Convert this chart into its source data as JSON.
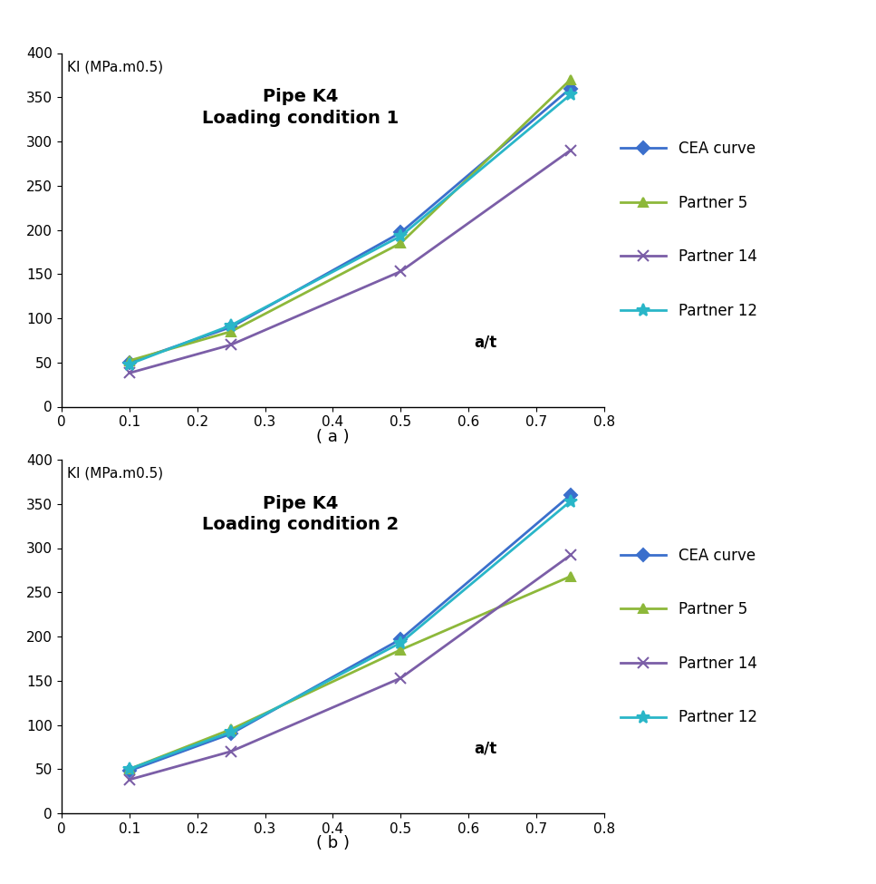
{
  "chart_a": {
    "title_line1": "Pipe K4",
    "title_line2": "Loading condition 1",
    "ylabel": "KI (MPa.m0.5)",
    "xlabel": "a/t",
    "caption": "( a )",
    "series": {
      "CEA curve": {
        "x": [
          0.1,
          0.25,
          0.5,
          0.75
        ],
        "y": [
          50,
          90,
          197,
          360
        ],
        "color": "#3B6FCC",
        "marker": "D",
        "markersize": 7,
        "linewidth": 2.0
      },
      "Partner 5": {
        "x": [
          0.1,
          0.25,
          0.5,
          0.75
        ],
        "y": [
          52,
          85,
          185,
          370
        ],
        "color": "#8DB83A",
        "marker": "^",
        "markersize": 7,
        "linewidth": 2.0
      },
      "Partner 14": {
        "x": [
          0.1,
          0.25,
          0.5,
          0.75
        ],
        "y": [
          38,
          70,
          153,
          290
        ],
        "color": "#7B5EA7",
        "marker": "x",
        "markersize": 9,
        "linewidth": 2.0
      },
      "Partner 12": {
        "x": [
          0.1,
          0.25,
          0.5,
          0.75
        ],
        "y": [
          48,
          92,
          193,
          353
        ],
        "color": "#29B6C8",
        "marker": "*",
        "markersize": 10,
        "linewidth": 2.0
      }
    },
    "xlim": [
      0,
      0.8
    ],
    "ylim": [
      0,
      400
    ],
    "xticks": [
      0,
      0.1,
      0.2,
      0.3,
      0.4,
      0.5,
      0.6,
      0.7,
      0.8
    ],
    "yticks": [
      0,
      50,
      100,
      150,
      200,
      250,
      300,
      350,
      400
    ]
  },
  "chart_b": {
    "title_line1": "Pipe K4",
    "title_line2": "Loading condition 2",
    "ylabel": "KI (MPa.m0.5)",
    "xlabel": "a/t",
    "caption": "( b )",
    "series": {
      "CEA curve": {
        "x": [
          0.1,
          0.25,
          0.5,
          0.75
        ],
        "y": [
          48,
          90,
          197,
          360
        ],
        "color": "#3B6FCC",
        "marker": "D",
        "markersize": 7,
        "linewidth": 2.0
      },
      "Partner 5": {
        "x": [
          0.1,
          0.25,
          0.5,
          0.75
        ],
        "y": [
          50,
          95,
          185,
          268
        ],
        "color": "#8DB83A",
        "marker": "^",
        "markersize": 7,
        "linewidth": 2.0
      },
      "Partner 14": {
        "x": [
          0.1,
          0.25,
          0.5,
          0.75
        ],
        "y": [
          38,
          70,
          153,
          292
        ],
        "color": "#7B5EA7",
        "marker": "x",
        "markersize": 9,
        "linewidth": 2.0
      },
      "Partner 12": {
        "x": [
          0.1,
          0.25,
          0.5,
          0.75
        ],
        "y": [
          50,
          92,
          193,
          353
        ],
        "color": "#29B6C8",
        "marker": "*",
        "markersize": 10,
        "linewidth": 2.0
      }
    },
    "xlim": [
      0,
      0.8
    ],
    "ylim": [
      0,
      400
    ],
    "xticks": [
      0,
      0.1,
      0.2,
      0.3,
      0.4,
      0.5,
      0.6,
      0.7,
      0.8
    ],
    "yticks": [
      0,
      50,
      100,
      150,
      200,
      250,
      300,
      350,
      400
    ]
  },
  "legend_labels": [
    "CEA curve",
    "Partner 5",
    "Partner 14",
    "Partner 12"
  ],
  "background_color": "#FFFFFF",
  "title_fontsize": 14,
  "label_fontsize": 11,
  "tick_fontsize": 11,
  "legend_fontsize": 12,
  "caption_fontsize": 13
}
